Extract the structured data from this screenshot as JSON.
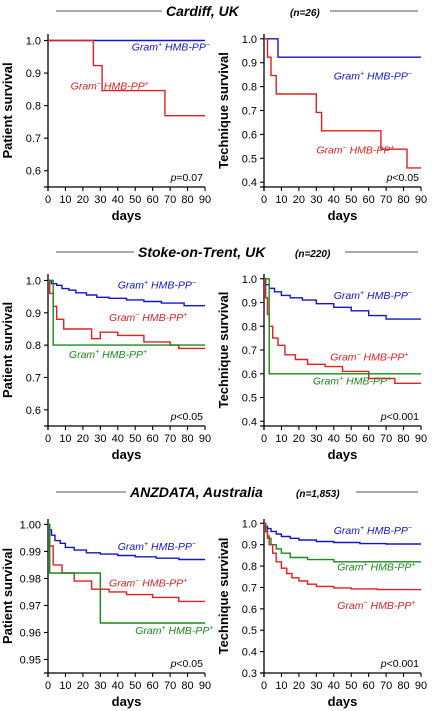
{
  "panels": [
    {
      "title": "Cardiff, UK",
      "n_label": "(n=26)"
    },
    {
      "title": "Stoke-on-Trent, UK",
      "n_label": "(n=220)"
    },
    {
      "title": "ANZDATA, Australia",
      "n_label": "(n=1,853)"
    }
  ],
  "colors": {
    "gram_pos_neg": "#1515cc",
    "gram_neg_pos": "#dd2222",
    "gram_pos_pos": "#1a8a1a",
    "axis": "#000000"
  },
  "chart_data": [
    {
      "type": "line",
      "step": true,
      "panel": "Cardiff, UK",
      "xlabel": "days",
      "ylabel": "Patient survival",
      "xlim": [
        0,
        90
      ],
      "ylim": [
        0.55,
        1.02
      ],
      "xticks": [
        0,
        10,
        20,
        30,
        40,
        50,
        60,
        70,
        80,
        90
      ],
      "yticks": [
        0.6,
        0.7,
        0.8,
        0.9,
        1.0
      ],
      "ytick_labels": [
        "0.6",
        "0.7",
        "0.8",
        "0.9",
        "1.0"
      ],
      "pvalue": "=0.07",
      "series": [
        {
          "label": "Gram+ HMB-PP−",
          "label_parts": [
            "Gram",
            "+",
            " HMB-PP",
            "−"
          ],
          "color": "#1515cc",
          "label_at": [
            48,
            0.97
          ],
          "x": [
            0,
            90
          ],
          "y": [
            1.0,
            1.0
          ]
        },
        {
          "label": "Gram− HMB-PP+",
          "label_parts": [
            "Gram",
            "−",
            " HMB-PP",
            "+"
          ],
          "color": "#dd2222",
          "label_at": [
            13,
            0.85
          ],
          "x": [
            0,
            26,
            26,
            31,
            31,
            67,
            67,
            90
          ],
          "y": [
            1.0,
            1.0,
            0.923,
            0.923,
            0.846,
            0.846,
            0.769,
            0.769
          ]
        }
      ]
    },
    {
      "type": "line",
      "step": true,
      "panel": "Cardiff, UK",
      "xlabel": "days",
      "ylabel": "Technique survival",
      "xlim": [
        0,
        90
      ],
      "ylim": [
        0.38,
        1.02
      ],
      "xticks": [
        0,
        10,
        20,
        30,
        40,
        50,
        60,
        70,
        80,
        90
      ],
      "yticks": [
        0.4,
        0.5,
        0.6,
        0.7,
        0.8,
        0.9,
        1.0
      ],
      "ytick_labels": [
        "0.4",
        "0.5",
        "0.6",
        "0.7",
        "0.8",
        "0.9",
        "1.0"
      ],
      "pvalue": "<0.05",
      "series": [
        {
          "label": "Gram+ HMB-PP−",
          "label_parts": [
            "Gram",
            "+",
            " HMB-PP",
            "−"
          ],
          "color": "#1515cc",
          "label_at": [
            40,
            0.83
          ],
          "x": [
            0,
            8,
            8,
            90
          ],
          "y": [
            1.0,
            1.0,
            0.923,
            0.923
          ]
        },
        {
          "label": "Gram− HMB-PP+",
          "label_parts": [
            "Gram",
            "−",
            " HMB-PP",
            "+"
          ],
          "color": "#dd2222",
          "label_at": [
            30,
            0.52
          ],
          "x": [
            0,
            2,
            2,
            4,
            4,
            7,
            7,
            30,
            30,
            33,
            33,
            67,
            67,
            82,
            82,
            90
          ],
          "y": [
            1.0,
            1.0,
            0.923,
            0.923,
            0.846,
            0.846,
            0.769,
            0.769,
            0.692,
            0.692,
            0.615,
            0.615,
            0.538,
            0.538,
            0.46,
            0.46
          ]
        }
      ]
    },
    {
      "type": "line",
      "step": true,
      "panel": "Stoke-on-Trent, UK",
      "xlabel": "days",
      "ylabel": "Patient survival",
      "xlim": [
        0,
        90
      ],
      "ylim": [
        0.55,
        1.02
      ],
      "xticks": [
        0,
        10,
        20,
        30,
        40,
        50,
        60,
        70,
        80,
        90
      ],
      "yticks": [
        0.6,
        0.7,
        0.8,
        0.9,
        1.0
      ],
      "ytick_labels": [
        "0.6",
        "0.7",
        "0.8",
        "0.9",
        "1.0"
      ],
      "pvalue": "<0.05",
      "series": [
        {
          "label": "Gram+ HMB-PP−",
          "label_parts": [
            "Gram",
            "+",
            " HMB-PP",
            "−"
          ],
          "color": "#1515cc",
          "label_at": [
            40,
            0.975
          ],
          "x": [
            0,
            2,
            2,
            5,
            5,
            8,
            8,
            12,
            12,
            16,
            16,
            22,
            22,
            28,
            28,
            35,
            35,
            45,
            45,
            55,
            55,
            65,
            65,
            78,
            78,
            90
          ],
          "y": [
            1.0,
            1.0,
            0.99,
            0.99,
            0.985,
            0.985,
            0.975,
            0.975,
            0.97,
            0.97,
            0.962,
            0.962,
            0.955,
            0.955,
            0.948,
            0.948,
            0.945,
            0.945,
            0.94,
            0.94,
            0.935,
            0.935,
            0.93,
            0.93,
            0.922,
            0.922
          ]
        },
        {
          "label": "Gram− HMB-PP+",
          "label_parts": [
            "Gram",
            "−",
            " HMB-PP",
            "+"
          ],
          "color": "#dd2222",
          "label_at": [
            35,
            0.875
          ],
          "x": [
            0,
            1,
            1,
            3,
            3,
            5,
            5,
            9,
            9,
            25,
            25,
            30,
            30,
            40,
            40,
            55,
            55,
            70,
            70,
            75,
            75,
            90
          ],
          "y": [
            1.0,
            1.0,
            0.96,
            0.96,
            0.92,
            0.92,
            0.88,
            0.88,
            0.85,
            0.85,
            0.82,
            0.82,
            0.84,
            0.84,
            0.83,
            0.83,
            0.81,
            0.81,
            0.8,
            0.8,
            0.79,
            0.79
          ]
        },
        {
          "label": "Gram+ HMB-PP+",
          "label_parts": [
            "Gram",
            "+",
            " HMB-PP",
            "+"
          ],
          "color": "#1a8a1a",
          "label_at": [
            12,
            0.76
          ],
          "x": [
            0,
            3,
            3,
            90
          ],
          "y": [
            1.0,
            1.0,
            0.8,
            0.8
          ]
        }
      ]
    },
    {
      "type": "line",
      "step": true,
      "panel": "Stoke-on-Trent, UK",
      "xlabel": "days",
      "ylabel": "Technique survival",
      "xlim": [
        0,
        90
      ],
      "ylim": [
        0.38,
        1.02
      ],
      "xticks": [
        0,
        10,
        20,
        30,
        40,
        50,
        60,
        70,
        80,
        90
      ],
      "yticks": [
        0.4,
        0.5,
        0.6,
        0.7,
        0.8,
        0.9,
        1.0
      ],
      "ytick_labels": [
        "0.4",
        "0.5",
        "0.6",
        "0.7",
        "0.8",
        "0.9",
        "1.0"
      ],
      "pvalue": "<0.001",
      "series": [
        {
          "label": "Gram+ HMB-PP−",
          "label_parts": [
            "Gram",
            "+",
            " HMB-PP",
            "−"
          ],
          "color": "#1515cc",
          "label_at": [
            40,
            0.915
          ],
          "x": [
            0,
            1,
            1,
            3,
            3,
            6,
            6,
            10,
            10,
            15,
            15,
            22,
            22,
            30,
            30,
            40,
            40,
            50,
            50,
            60,
            60,
            70,
            70,
            90
          ],
          "y": [
            1.0,
            1.0,
            0.975,
            0.975,
            0.96,
            0.96,
            0.945,
            0.945,
            0.93,
            0.93,
            0.92,
            0.92,
            0.91,
            0.91,
            0.895,
            0.895,
            0.88,
            0.88,
            0.865,
            0.865,
            0.845,
            0.845,
            0.83,
            0.83
          ]
        },
        {
          "label": "Gram− HMB-PP+",
          "label_parts": [
            "Gram",
            "−",
            " HMB-PP",
            "+"
          ],
          "color": "#dd2222",
          "label_at": [
            38,
            0.655
          ],
          "x": [
            0,
            1,
            1,
            2,
            2,
            3,
            3,
            5,
            5,
            8,
            8,
            12,
            12,
            18,
            18,
            25,
            25,
            35,
            35,
            45,
            45,
            60,
            60,
            75,
            75,
            90
          ],
          "y": [
            1.0,
            1.0,
            0.92,
            0.92,
            0.85,
            0.85,
            0.8,
            0.8,
            0.75,
            0.75,
            0.72,
            0.72,
            0.68,
            0.68,
            0.66,
            0.66,
            0.64,
            0.64,
            0.63,
            0.63,
            0.61,
            0.61,
            0.58,
            0.58,
            0.56,
            0.56
          ]
        },
        {
          "label": "Gram+ HMB-PP+",
          "label_parts": [
            "Gram",
            "+",
            " HMB-PP",
            "+"
          ],
          "color": "#1a8a1a",
          "label_at": [
            28,
            0.555
          ],
          "x": [
            0,
            3,
            3,
            90
          ],
          "y": [
            1.0,
            1.0,
            0.6,
            0.6
          ]
        }
      ]
    },
    {
      "type": "line",
      "step": true,
      "panel": "ANZDATA, Australia",
      "xlabel": "days",
      "ylabel": "Patient survival",
      "xlim": [
        0,
        90
      ],
      "ylim": [
        0.945,
        1.002
      ],
      "xticks": [
        0,
        10,
        20,
        30,
        40,
        50,
        60,
        70,
        80,
        90
      ],
      "yticks": [
        0.95,
        0.96,
        0.97,
        0.98,
        0.99,
        1.0
      ],
      "ytick_labels": [
        "0.95",
        "0.96",
        "0.97",
        "0.98",
        "0.99",
        "1.00"
      ],
      "pvalue": "<0.05",
      "series": [
        {
          "label": "Gram+ HMB-PP−",
          "label_parts": [
            "Gram",
            "+",
            " HMB-PP",
            "−"
          ],
          "color": "#1515cc",
          "label_at": [
            40,
            0.9905
          ],
          "x": [
            0,
            1,
            1,
            2,
            2,
            4,
            4,
            7,
            7,
            10,
            10,
            15,
            15,
            22,
            22,
            30,
            30,
            40,
            40,
            50,
            50,
            62,
            62,
            75,
            75,
            90
          ],
          "y": [
            1.0,
            1.0,
            0.998,
            0.998,
            0.996,
            0.996,
            0.994,
            0.994,
            0.993,
            0.993,
            0.9915,
            0.9915,
            0.9905,
            0.9905,
            0.9895,
            0.9895,
            0.989,
            0.989,
            0.9885,
            0.9885,
            0.988,
            0.988,
            0.9875,
            0.9875,
            0.987,
            0.987
          ]
        },
        {
          "label": "Gram− HMB-PP+",
          "label_parts": [
            "Gram",
            "−",
            " HMB-PP",
            "+"
          ],
          "color": "#dd2222",
          "label_at": [
            35,
            0.977
          ],
          "x": [
            0,
            1,
            1,
            3,
            3,
            8,
            8,
            15,
            15,
            25,
            25,
            35,
            35,
            45,
            45,
            60,
            60,
            75,
            75,
            90
          ],
          "y": [
            1.0,
            1.0,
            0.992,
            0.992,
            0.985,
            0.985,
            0.982,
            0.982,
            0.979,
            0.979,
            0.976,
            0.976,
            0.975,
            0.975,
            0.974,
            0.974,
            0.973,
            0.973,
            0.9715,
            0.9715
          ]
        },
        {
          "label": "Gram+ HMB-PP+",
          "label_parts": [
            "Gram",
            "+",
            " HMB-PP",
            "+"
          ],
          "color": "#1a8a1a",
          "label_at": [
            50,
            0.9595
          ],
          "x": [
            0,
            1,
            1,
            30,
            30,
            90
          ],
          "y": [
            1.0,
            1.0,
            0.982,
            0.982,
            0.9635,
            0.9635
          ]
        }
      ]
    },
    {
      "type": "line",
      "step": true,
      "panel": "ANZDATA, Australia",
      "xlabel": "days",
      "ylabel": "Technique survival",
      "xlim": [
        0,
        90
      ],
      "ylim": [
        0.3,
        1.02
      ],
      "xticks": [
        0,
        10,
        20,
        30,
        40,
        50,
        60,
        70,
        80,
        90
      ],
      "yticks": [
        0.3,
        0.4,
        0.5,
        0.6,
        0.7,
        0.8,
        0.9,
        1.0
      ],
      "ytick_labels": [
        "0.3",
        "0.4",
        "0.5",
        "0.6",
        "0.7",
        "0.8",
        "0.9",
        "1.0"
      ],
      "pvalue": "<0.001",
      "series": [
        {
          "label": "Gram+ HMB-PP−",
          "label_parts": [
            "Gram",
            "+",
            " HMB-PP",
            "−"
          ],
          "color": "#1515cc",
          "label_at": [
            40,
            0.95
          ],
          "x": [
            0,
            1,
            1,
            2,
            2,
            4,
            4,
            7,
            7,
            10,
            10,
            15,
            15,
            20,
            20,
            30,
            30,
            40,
            40,
            55,
            55,
            70,
            70,
            90
          ],
          "y": [
            1.0,
            1.0,
            0.985,
            0.985,
            0.975,
            0.975,
            0.962,
            0.962,
            0.95,
            0.95,
            0.938,
            0.938,
            0.93,
            0.93,
            0.922,
            0.922,
            0.915,
            0.915,
            0.91,
            0.91,
            0.905,
            0.905,
            0.903,
            0.903
          ]
        },
        {
          "label": "Gram+ HMB-PP+",
          "label_parts": [
            "Gram",
            "+",
            " HMB-PP",
            "+"
          ],
          "color": "#1a8a1a",
          "label_at": [
            42,
            0.78
          ],
          "x": [
            0,
            1,
            1,
            2,
            2,
            4,
            4,
            7,
            7,
            10,
            10,
            15,
            15,
            25,
            25,
            40,
            40,
            90
          ],
          "y": [
            1.0,
            1.0,
            0.96,
            0.96,
            0.93,
            0.93,
            0.9,
            0.9,
            0.88,
            0.88,
            0.86,
            0.86,
            0.84,
            0.84,
            0.83,
            0.83,
            0.82,
            0.82
          ]
        },
        {
          "label": "Gram− HMB-PP+",
          "label_parts": [
            "Gram",
            "−",
            " HMB-PP",
            "+"
          ],
          "color": "#dd2222",
          "label_at": [
            42,
            0.6
          ],
          "x": [
            0,
            1,
            1,
            2,
            2,
            3,
            3,
            5,
            5,
            7,
            7,
            10,
            10,
            13,
            13,
            16,
            16,
            20,
            20,
            25,
            25,
            30,
            30,
            40,
            40,
            50,
            50,
            65,
            65,
            90
          ],
          "y": [
            1.0,
            1.0,
            0.97,
            0.97,
            0.94,
            0.94,
            0.9,
            0.9,
            0.86,
            0.86,
            0.82,
            0.82,
            0.79,
            0.79,
            0.765,
            0.765,
            0.745,
            0.745,
            0.73,
            0.73,
            0.715,
            0.715,
            0.705,
            0.705,
            0.698,
            0.698,
            0.693,
            0.693,
            0.69,
            0.69
          ]
        }
      ]
    }
  ]
}
